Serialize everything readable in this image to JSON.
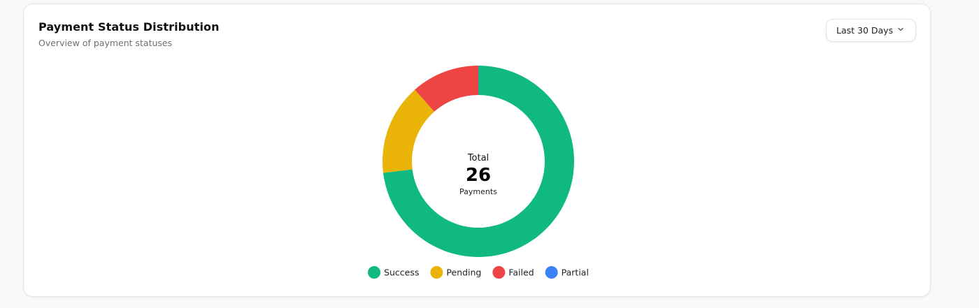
{
  "card": {
    "title": "Payment Status Distribution",
    "subtitle": "Overview of payment statuses"
  },
  "range_select": {
    "value": "Last 30 Days",
    "icon": "chevron-down-icon"
  },
  "chart_data": {
    "type": "pie",
    "variant": "donut",
    "title": "Payment Status Distribution",
    "subtitle": "Overview of payment statuses",
    "center": {
      "label_top": "Total",
      "value": "26",
      "label_bottom": "Payments"
    },
    "legend_position": "bottom-center",
    "slices": [
      {
        "name": "Success",
        "value": 19,
        "color": "#10b981"
      },
      {
        "name": "Pending",
        "value": 4,
        "color": "#eab308"
      },
      {
        "name": "Failed",
        "value": 3,
        "color": "#ef4444"
      },
      {
        "name": "Partial",
        "value": 0,
        "color": "#3b82f6"
      }
    ]
  }
}
